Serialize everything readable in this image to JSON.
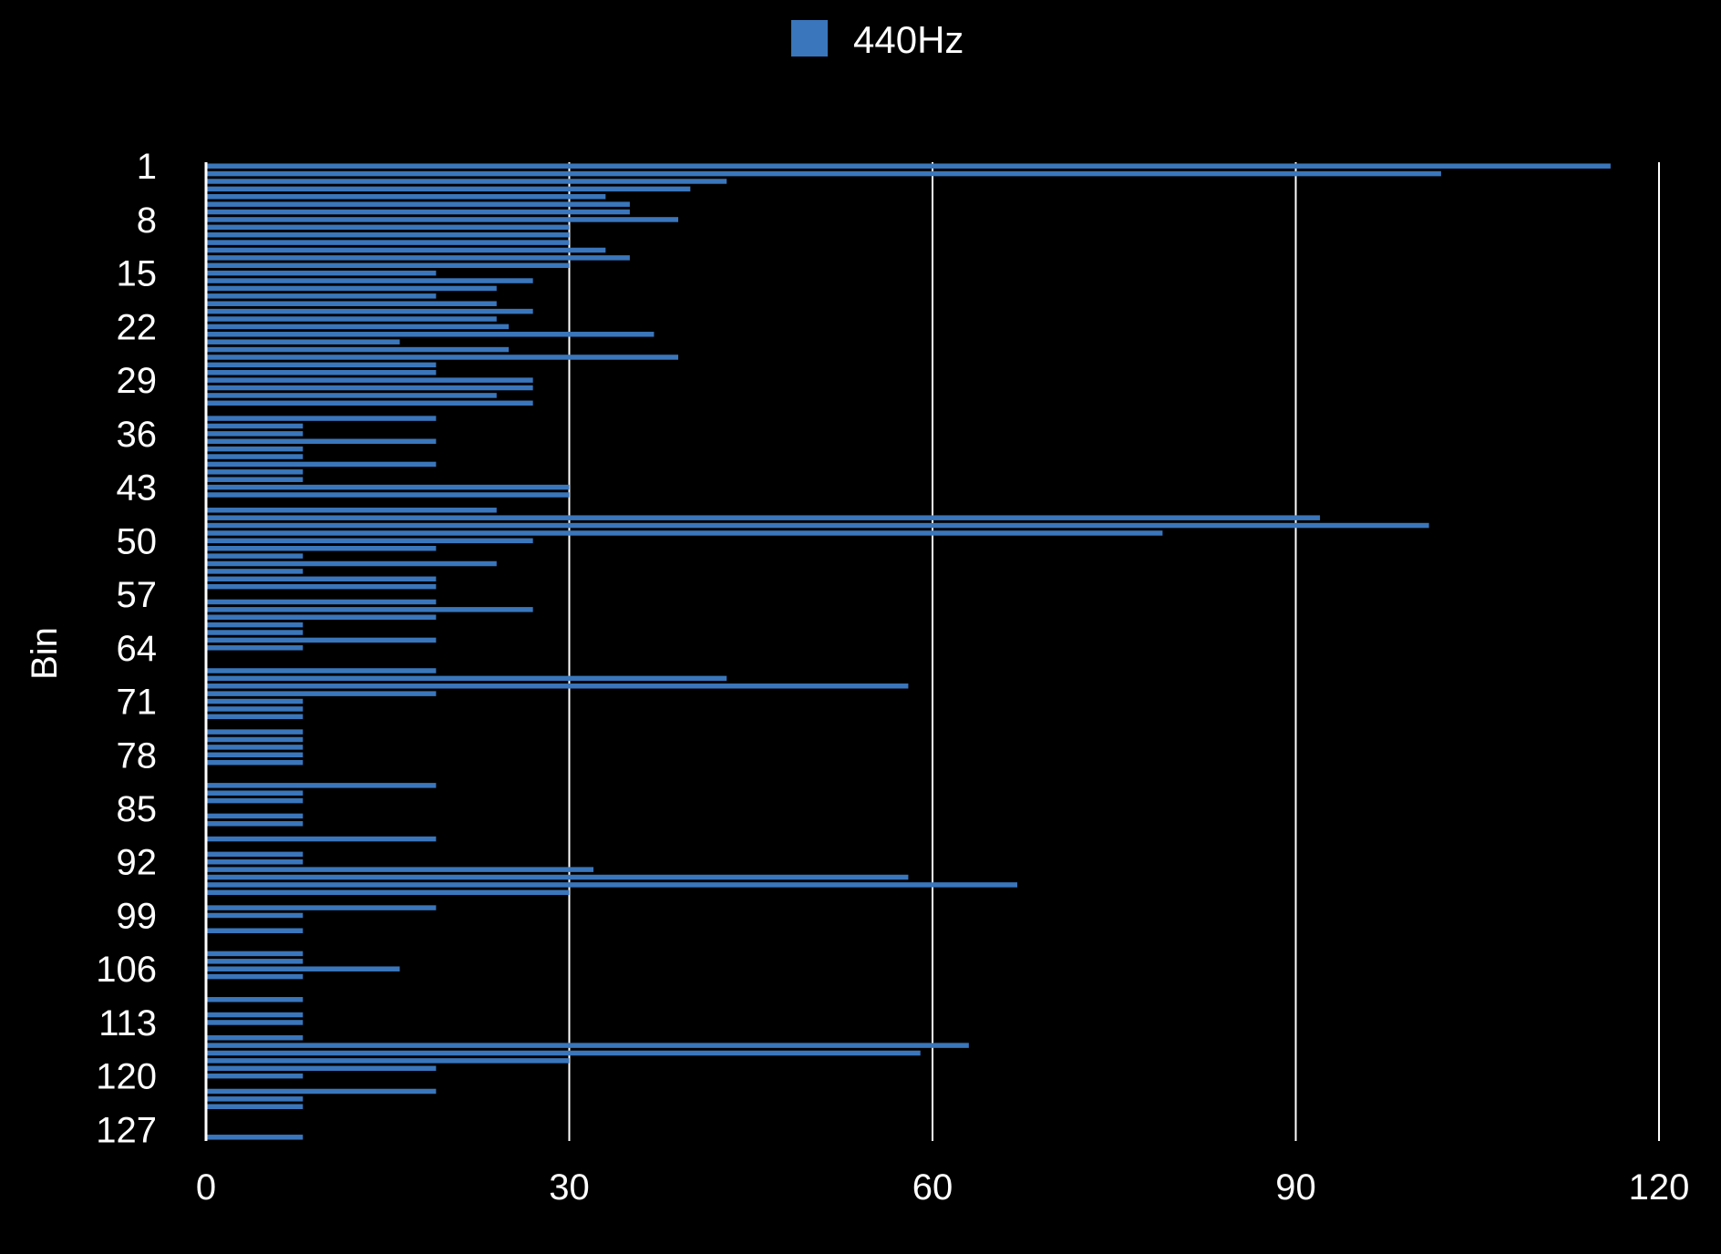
{
  "chart_data": {
    "type": "bar",
    "orientation": "horizontal",
    "title": "",
    "xlabel": "",
    "ylabel": "Bin",
    "xlim": [
      0,
      120
    ],
    "x_ticks": [
      "0",
      "30",
      "60",
      "90",
      "120"
    ],
    "y_tick_labels": [
      "1",
      "8",
      "15",
      "22",
      "29",
      "36",
      "43",
      "50",
      "57",
      "64",
      "71",
      "78",
      "85",
      "92",
      "99",
      "106",
      "113",
      "120",
      "127"
    ],
    "grid": true,
    "legend": {
      "position": "top-center",
      "entries": [
        "440Hz"
      ]
    },
    "colors": {
      "background": "#000000",
      "bar": "#3a76bb",
      "grid": "#ffffff",
      "text": "#ffffff"
    },
    "categories": [
      1,
      2,
      3,
      4,
      5,
      6,
      7,
      8,
      9,
      10,
      11,
      12,
      13,
      14,
      15,
      16,
      17,
      18,
      19,
      20,
      21,
      22,
      23,
      24,
      25,
      26,
      27,
      28,
      29,
      30,
      31,
      32,
      33,
      34,
      35,
      36,
      37,
      38,
      39,
      40,
      41,
      42,
      43,
      44,
      45,
      46,
      47,
      48,
      49,
      50,
      51,
      52,
      53,
      54,
      55,
      56,
      57,
      58,
      59,
      60,
      61,
      62,
      63,
      64,
      65,
      66,
      67,
      68,
      69,
      70,
      71,
      72,
      73,
      74,
      75,
      76,
      77,
      78,
      79,
      80,
      81,
      82,
      83,
      84,
      85,
      86,
      87,
      88,
      89,
      90,
      91,
      92,
      93,
      94,
      95,
      96,
      97,
      98,
      99,
      100,
      101,
      102,
      103,
      104,
      105,
      106,
      107,
      108,
      109,
      110,
      111,
      112,
      113,
      114,
      115,
      116,
      117,
      118,
      119,
      120,
      121,
      122,
      123,
      124,
      125,
      126,
      127,
      128
    ],
    "series": [
      {
        "name": "440Hz",
        "values": [
          116,
          102,
          43,
          40,
          33,
          35,
          35,
          39,
          30,
          30,
          30,
          33,
          35,
          30,
          19,
          27,
          24,
          19,
          24,
          27,
          24,
          25,
          37,
          16,
          25,
          39,
          19,
          19,
          27,
          27,
          24,
          27,
          0,
          19,
          8,
          8,
          19,
          8,
          8,
          19,
          8,
          8,
          30,
          30,
          0,
          24,
          92,
          101,
          79,
          27,
          19,
          8,
          24,
          8,
          19,
          19,
          0,
          19,
          27,
          19,
          8,
          8,
          19,
          8,
          0,
          0,
          19,
          43,
          58,
          19,
          8,
          8,
          8,
          0,
          8,
          8,
          8,
          8,
          8,
          0,
          0,
          19,
          8,
          8,
          0,
          8,
          8,
          0,
          19,
          0,
          8,
          8,
          32,
          58,
          67,
          30,
          0,
          19,
          8,
          0,
          8,
          0,
          0,
          8,
          8,
          16,
          8,
          0,
          0,
          8,
          0,
          8,
          8,
          0,
          8,
          63,
          59,
          30,
          19,
          8,
          0,
          19,
          8,
          8,
          0,
          0,
          0,
          8
        ]
      }
    ]
  }
}
